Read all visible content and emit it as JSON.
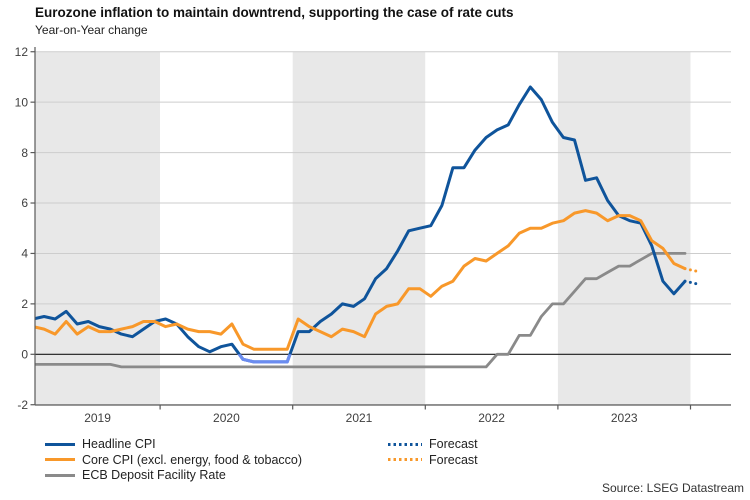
{
  "title": "Eurozone inflation to maintain downtrend, supporting the case of rate cuts",
  "subtitle": "Year-on-Year change",
  "source": "Source: LSEG Datastream",
  "legend": {
    "headline": "Headline CPI",
    "core": "Core CPI (excl. energy, food & tobacco)",
    "rate": "ECB Deposit Facility Rate",
    "forecast_headline": "Forecast",
    "forecast_core": "Forecast"
  },
  "colors": {
    "headline": "#0f549b",
    "headline_negative": "#6b8cf0",
    "core": "#f8982a",
    "rate": "#8a8a8a",
    "band": "#e8e8e8",
    "gridline": "#cdcdcd",
    "zero_line": "#1a1a1a",
    "axis": "#595959"
  },
  "chart_data": {
    "type": "line",
    "title": "Eurozone inflation to maintain downtrend, supporting the case of rate cuts",
    "xlabel": "",
    "ylabel": "Year-on-Year change",
    "ylim": [
      -2,
      12
    ],
    "yticks": [
      -2,
      0,
      2,
      4,
      6,
      8,
      10,
      12
    ],
    "grid": true,
    "legend_position": "bottom",
    "x_start": "2019-01",
    "x_end": "2023-12",
    "freq": "monthly",
    "years": [
      2019,
      2020,
      2021,
      2022,
      2023
    ],
    "shaded_years": [
      2019,
      2021,
      2023
    ],
    "series": [
      {
        "name": "ECB Deposit Facility Rate",
        "key": "rate",
        "color": "#8a8a8a",
        "values": [
          -0.4,
          -0.4,
          -0.4,
          -0.4,
          -0.4,
          -0.4,
          -0.4,
          -0.4,
          -0.5,
          -0.5,
          -0.5,
          -0.5,
          -0.5,
          -0.5,
          -0.5,
          -0.5,
          -0.5,
          -0.5,
          -0.5,
          -0.5,
          -0.5,
          -0.5,
          -0.5,
          -0.5,
          -0.5,
          -0.5,
          -0.5,
          -0.5,
          -0.5,
          -0.5,
          -0.5,
          -0.5,
          -0.5,
          -0.5,
          -0.5,
          -0.5,
          -0.5,
          -0.5,
          -0.5,
          -0.5,
          -0.5,
          -0.5,
          0.0,
          0.0,
          0.75,
          0.75,
          1.5,
          2.0,
          2.0,
          2.5,
          3.0,
          3.0,
          3.25,
          3.5,
          3.5,
          3.75,
          4.0,
          4.0,
          4.0,
          4.0
        ]
      },
      {
        "name": "Headline CPI",
        "key": "headline",
        "color": "#0f549b",
        "negative_color": "#6b8cf0",
        "values": [
          1.4,
          1.5,
          1.4,
          1.7,
          1.2,
          1.3,
          1.1,
          1.0,
          0.8,
          0.7,
          1.0,
          1.3,
          1.4,
          1.2,
          0.7,
          0.3,
          0.1,
          0.3,
          0.4,
          -0.2,
          -0.3,
          -0.3,
          -0.3,
          -0.3,
          0.9,
          0.9,
          1.3,
          1.6,
          2.0,
          1.9,
          2.2,
          3.0,
          3.4,
          4.1,
          4.9,
          5.0,
          5.1,
          5.9,
          7.4,
          7.4,
          8.1,
          8.6,
          8.9,
          9.1,
          9.9,
          10.6,
          10.1,
          9.2,
          8.6,
          8.5,
          6.9,
          7.0,
          6.1,
          5.5,
          5.3,
          5.2,
          4.3,
          2.9,
          2.4,
          2.9
        ]
      },
      {
        "name": "Core CPI (excl. energy, food & tobacco)",
        "key": "core",
        "color": "#f8982a",
        "values": [
          1.1,
          1.0,
          0.8,
          1.3,
          0.8,
          1.1,
          0.9,
          0.9,
          1.0,
          1.1,
          1.3,
          1.3,
          1.1,
          1.2,
          1.0,
          0.9,
          0.9,
          0.8,
          1.2,
          0.4,
          0.2,
          0.2,
          0.2,
          0.2,
          1.4,
          1.1,
          0.9,
          0.7,
          1.0,
          0.9,
          0.7,
          1.6,
          1.9,
          2.0,
          2.6,
          2.6,
          2.3,
          2.7,
          2.9,
          3.5,
          3.8,
          3.7,
          4.0,
          4.3,
          4.8,
          5.0,
          5.0,
          5.2,
          5.3,
          5.6,
          5.7,
          5.6,
          5.3,
          5.5,
          5.5,
          5.3,
          4.5,
          4.2,
          3.6,
          3.4
        ]
      }
    ],
    "forecast": [
      {
        "name": "Headline CPI forecast",
        "base": "headline",
        "style": "dotted",
        "start": "2023-12",
        "values": [
          2.9,
          2.8
        ],
        "color": "#0f549b"
      },
      {
        "name": "Core CPI forecast",
        "base": "core",
        "style": "dotted",
        "start": "2023-12",
        "values": [
          3.4,
          3.3
        ],
        "color": "#f8982a"
      }
    ]
  }
}
